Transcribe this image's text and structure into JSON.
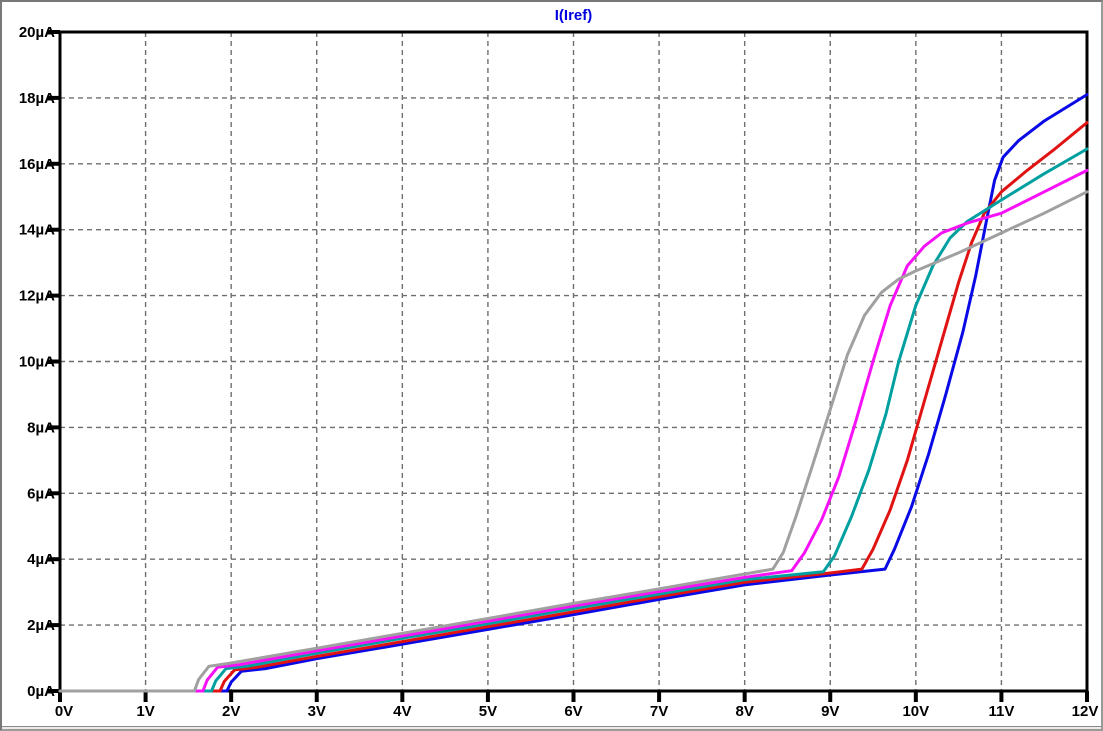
{
  "window": {
    "title": "I(Iref)"
  },
  "chart_data": {
    "type": "line",
    "title": "I(Iref)",
    "x_unit": "V",
    "y_unit": "µA",
    "xlim": [
      0,
      12
    ],
    "ylim": [
      0,
      20
    ],
    "x_tick_step": 1,
    "y_tick_step": 2,
    "x_ticks": [
      "0V",
      "1V",
      "2V",
      "3V",
      "4V",
      "5V",
      "6V",
      "7V",
      "8V",
      "9V",
      "10V",
      "11V",
      "12V"
    ],
    "y_ticks": [
      "0µA",
      "2µA",
      "4µA",
      "6µA",
      "8µA",
      "10µA",
      "12µA",
      "14µA",
      "16µA",
      "18µA",
      "20µA"
    ],
    "grid": true,
    "grid_style": "dashed",
    "legend": "none",
    "title_position": "top-center",
    "series": [
      {
        "name": "trace-blue",
        "color": "#0a0ae6",
        "points": [
          [
            0,
            0
          ],
          [
            1.95,
            0
          ],
          [
            2.0,
            0.27
          ],
          [
            2.12,
            0.6
          ],
          [
            2.4,
            0.68
          ],
          [
            3,
            0.98
          ],
          [
            4,
            1.42
          ],
          [
            5,
            1.87
          ],
          [
            6,
            2.32
          ],
          [
            7,
            2.78
          ],
          [
            8,
            3.22
          ],
          [
            9,
            3.52
          ],
          [
            9.64,
            3.7
          ],
          [
            9.75,
            4.3
          ],
          [
            9.95,
            5.6
          ],
          [
            10.15,
            7.2
          ],
          [
            10.35,
            9.0
          ],
          [
            10.55,
            10.9
          ],
          [
            10.7,
            12.6
          ],
          [
            10.82,
            14.2
          ],
          [
            10.92,
            15.5
          ],
          [
            11.02,
            16.2
          ],
          [
            11.2,
            16.7
          ],
          [
            11.5,
            17.3
          ],
          [
            12,
            18.1
          ]
        ]
      },
      {
        "name": "trace-red",
        "color": "#e01212",
        "points": [
          [
            0,
            0
          ],
          [
            1.87,
            0
          ],
          [
            1.92,
            0.29
          ],
          [
            2.04,
            0.64
          ],
          [
            2.3,
            0.72
          ],
          [
            3,
            1.05
          ],
          [
            4,
            1.5
          ],
          [
            5,
            1.95
          ],
          [
            6,
            2.4
          ],
          [
            7,
            2.86
          ],
          [
            8,
            3.3
          ],
          [
            9,
            3.58
          ],
          [
            9.37,
            3.7
          ],
          [
            9.5,
            4.3
          ],
          [
            9.7,
            5.5
          ],
          [
            9.9,
            7.0
          ],
          [
            10.1,
            8.8
          ],
          [
            10.3,
            10.6
          ],
          [
            10.5,
            12.4
          ],
          [
            10.65,
            13.6
          ],
          [
            10.8,
            14.5
          ],
          [
            11,
            15.15
          ],
          [
            11.3,
            15.8
          ],
          [
            11.6,
            16.4
          ],
          [
            12,
            17.25
          ]
        ]
      },
      {
        "name": "trace-cyan",
        "color": "#00a0a0",
        "points": [
          [
            0,
            0
          ],
          [
            1.77,
            0
          ],
          [
            1.82,
            0.31
          ],
          [
            1.94,
            0.68
          ],
          [
            2.2,
            0.76
          ],
          [
            3,
            1.15
          ],
          [
            4,
            1.6
          ],
          [
            5,
            2.04
          ],
          [
            6,
            2.5
          ],
          [
            7,
            2.94
          ],
          [
            8,
            3.38
          ],
          [
            8.92,
            3.62
          ],
          [
            9.05,
            4.1
          ],
          [
            9.25,
            5.3
          ],
          [
            9.45,
            6.7
          ],
          [
            9.65,
            8.4
          ],
          [
            9.8,
            10.0
          ],
          [
            10.0,
            11.7
          ],
          [
            10.2,
            12.9
          ],
          [
            10.4,
            13.75
          ],
          [
            10.6,
            14.25
          ],
          [
            11,
            14.9
          ],
          [
            11.5,
            15.7
          ],
          [
            12,
            16.45
          ]
        ]
      },
      {
        "name": "trace-magenta",
        "color": "#f611f6",
        "points": [
          [
            0,
            0
          ],
          [
            1.67,
            0
          ],
          [
            1.72,
            0.33
          ],
          [
            1.84,
            0.72
          ],
          [
            2.1,
            0.8
          ],
          [
            3,
            1.22
          ],
          [
            4,
            1.67
          ],
          [
            5,
            2.12
          ],
          [
            6,
            2.58
          ],
          [
            7,
            3.02
          ],
          [
            8,
            3.45
          ],
          [
            8.55,
            3.65
          ],
          [
            8.7,
            4.2
          ],
          [
            8.9,
            5.2
          ],
          [
            9.1,
            6.5
          ],
          [
            9.3,
            8.2
          ],
          [
            9.5,
            10.0
          ],
          [
            9.7,
            11.7
          ],
          [
            9.9,
            12.9
          ],
          [
            10.1,
            13.5
          ],
          [
            10.3,
            13.9
          ],
          [
            10.6,
            14.2
          ],
          [
            11,
            14.5
          ],
          [
            11.5,
            15.15
          ],
          [
            12,
            15.8
          ]
        ]
      },
      {
        "name": "trace-gray",
        "color": "#a0a0a0",
        "points": [
          [
            0,
            0
          ],
          [
            1.57,
            0
          ],
          [
            1.62,
            0.35
          ],
          [
            1.74,
            0.75
          ],
          [
            2,
            0.85
          ],
          [
            3,
            1.3
          ],
          [
            4,
            1.75
          ],
          [
            5,
            2.2
          ],
          [
            6,
            2.66
          ],
          [
            7,
            3.1
          ],
          [
            8,
            3.55
          ],
          [
            8.33,
            3.7
          ],
          [
            8.45,
            4.2
          ],
          [
            8.6,
            5.3
          ],
          [
            8.8,
            6.9
          ],
          [
            9.0,
            8.55
          ],
          [
            9.2,
            10.2
          ],
          [
            9.4,
            11.4
          ],
          [
            9.6,
            12.1
          ],
          [
            9.8,
            12.5
          ],
          [
            10,
            12.75
          ],
          [
            10.5,
            13.3
          ],
          [
            11,
            13.9
          ],
          [
            11.5,
            14.5
          ],
          [
            12,
            15.15
          ]
        ]
      }
    ],
    "colors": {
      "title": "#0000e0",
      "axis": "#000000",
      "grid": "#6e6e6e",
      "background": "#ffffff"
    }
  }
}
